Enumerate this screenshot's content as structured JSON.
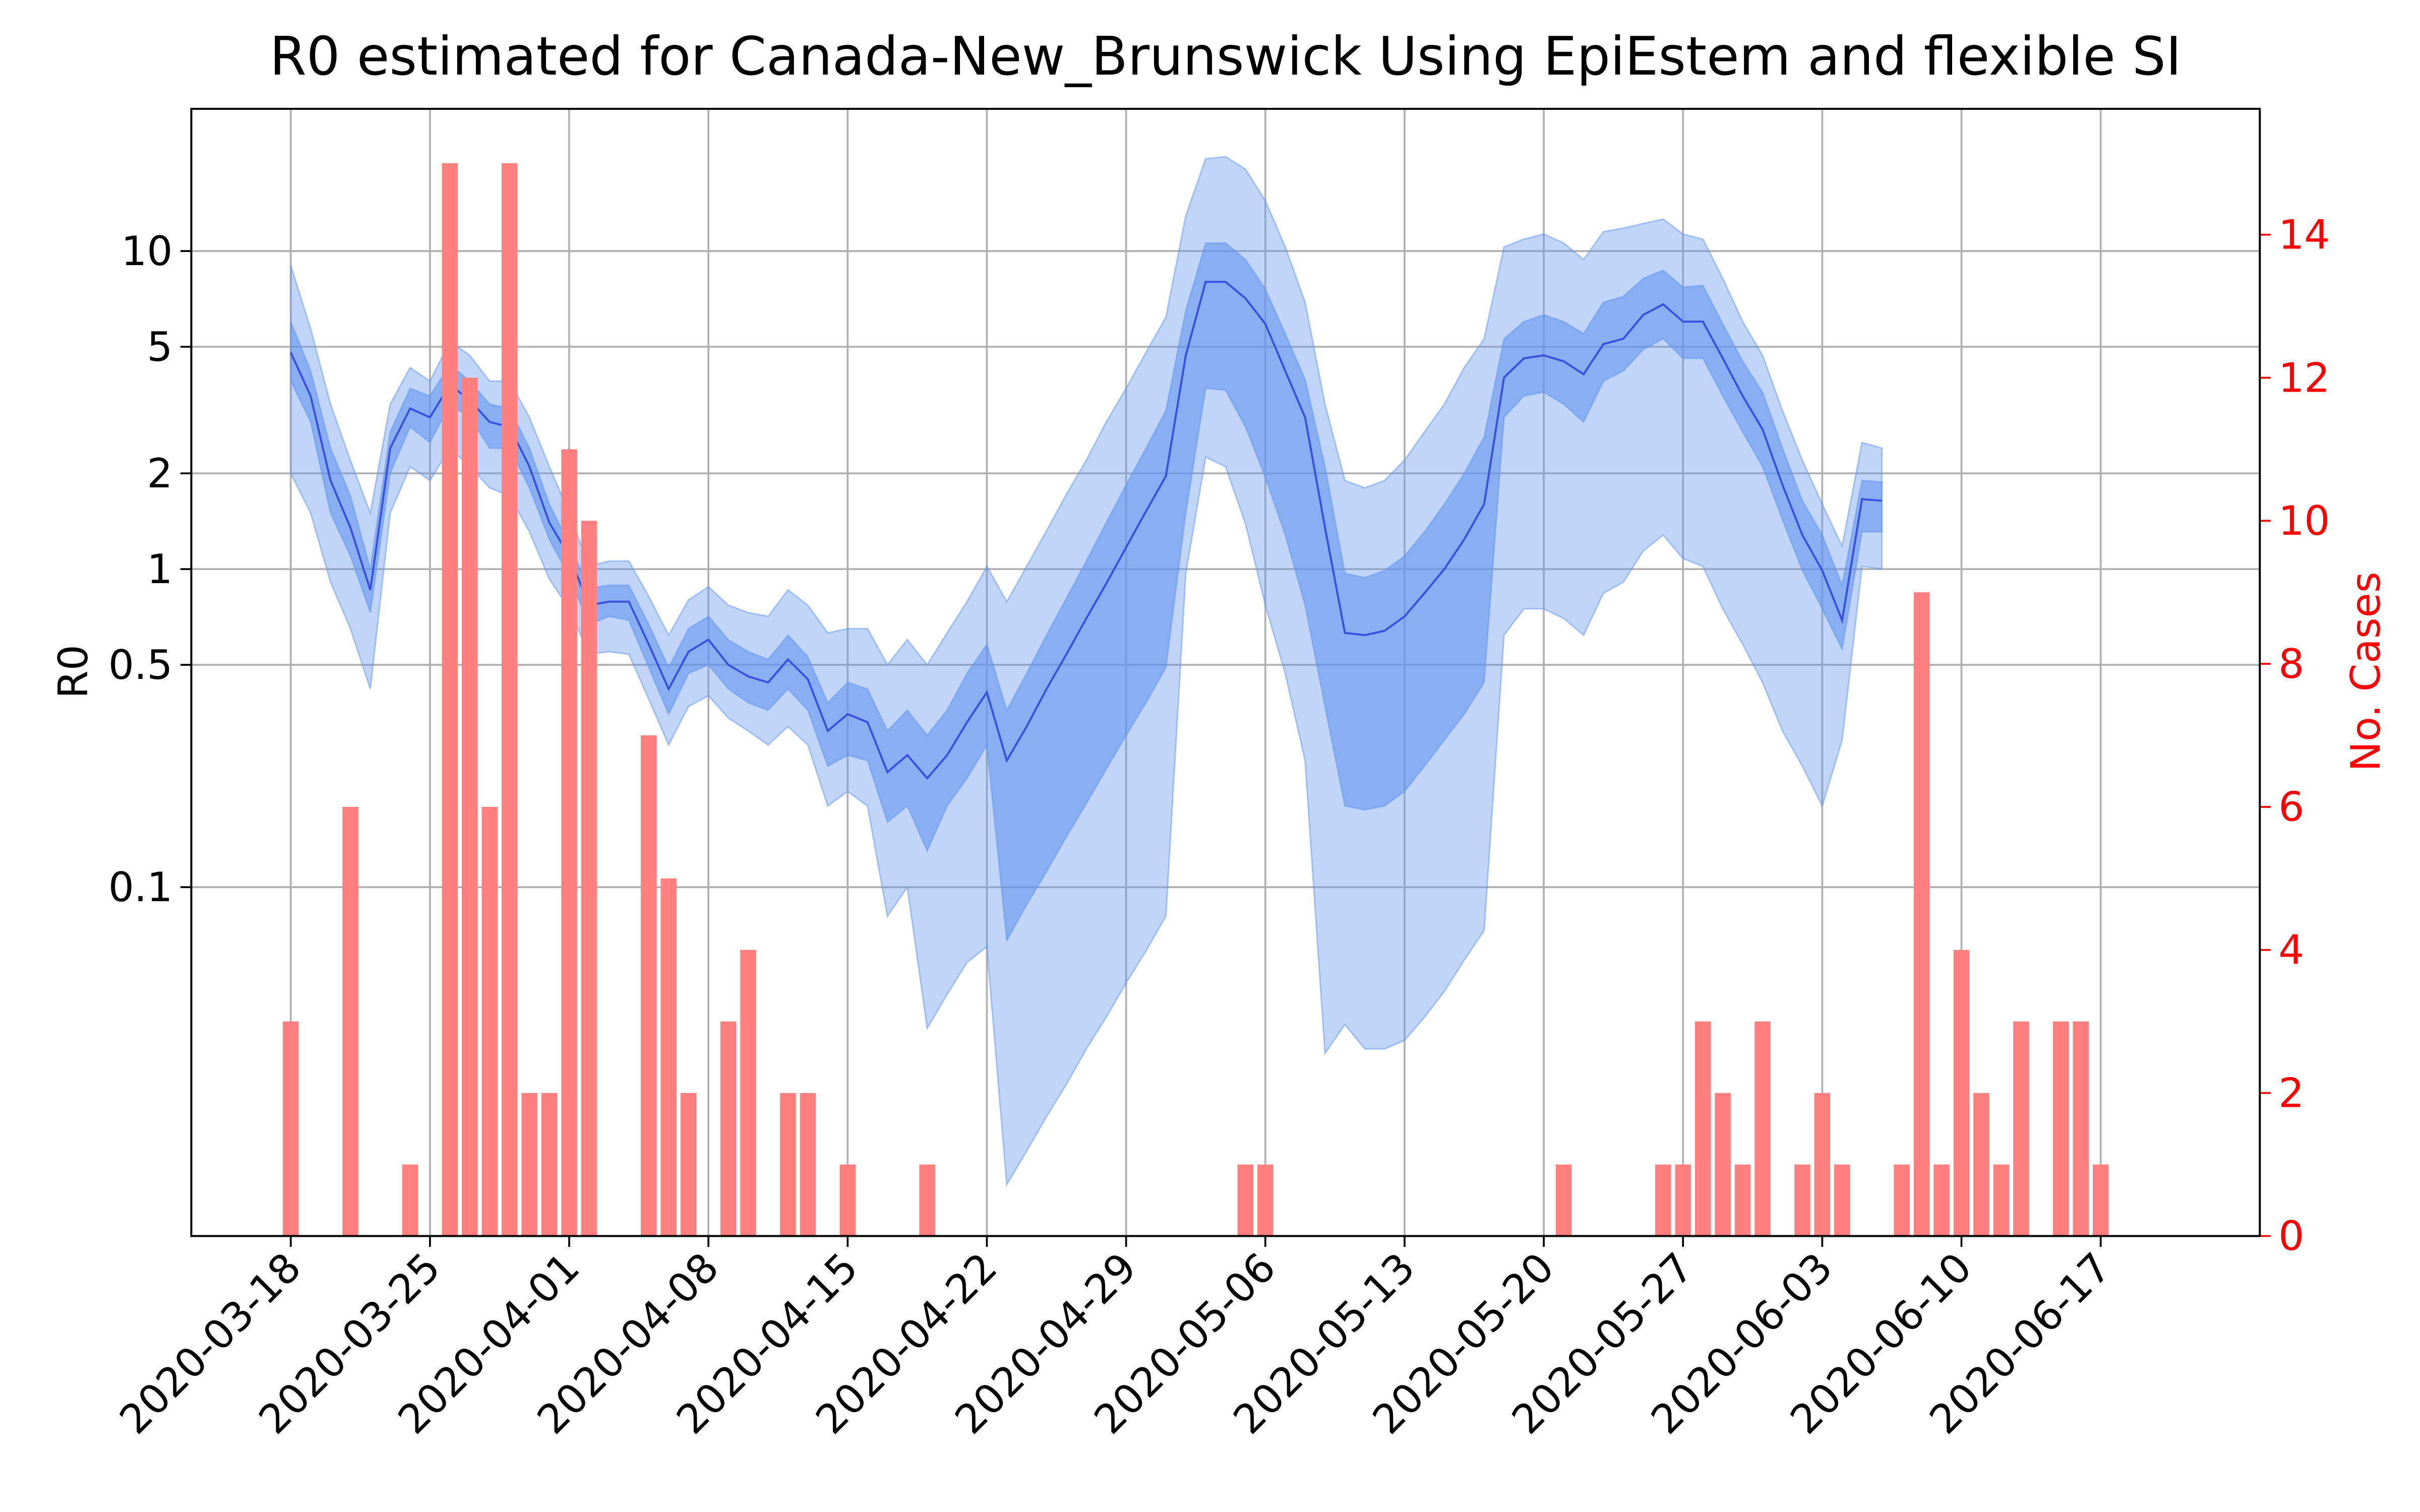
{
  "chart_data": {
    "type": "combo",
    "title": "R0 estimated for Canada-New_Brunswick Using EpiEstem and flexible SI",
    "ylabel": "R0",
    "y2label": "No. Cases",
    "log_y": true,
    "grid": true,
    "xlim": [
      "2020-03-13",
      "2020-06-25"
    ],
    "xticks": [
      "2020-03-18",
      "2020-03-25",
      "2020-04-01",
      "2020-04-08",
      "2020-04-15",
      "2020-04-22",
      "2020-04-29",
      "2020-05-06",
      "2020-05-13",
      "2020-05-20",
      "2020-05-27",
      "2020-06-03",
      "2020-06-10",
      "2020-06-17"
    ],
    "ylim": [
      0.008,
      28
    ],
    "yticks": [
      0.1,
      0.5,
      1,
      2,
      5,
      10
    ],
    "y2lim": [
      0,
      15.76
    ],
    "y2ticks": [
      0,
      2,
      4,
      6,
      8,
      10,
      12,
      14
    ],
    "y2color": "#ff0000",
    "x": [
      "2020-03-18",
      "2020-03-19",
      "2020-03-20",
      "2020-03-21",
      "2020-03-22",
      "2020-03-23",
      "2020-03-24",
      "2020-03-25",
      "2020-03-26",
      "2020-03-27",
      "2020-03-28",
      "2020-03-29",
      "2020-03-30",
      "2020-03-31",
      "2020-04-01",
      "2020-04-02",
      "2020-04-03",
      "2020-04-04",
      "2020-04-05",
      "2020-04-06",
      "2020-04-07",
      "2020-04-08",
      "2020-04-09",
      "2020-04-10",
      "2020-04-11",
      "2020-04-12",
      "2020-04-13",
      "2020-04-14",
      "2020-04-15",
      "2020-04-16",
      "2020-04-17",
      "2020-04-18",
      "2020-04-19",
      "2020-04-20",
      "2020-04-21",
      "2020-04-22",
      "2020-04-23",
      "2020-04-24",
      "2020-04-25",
      "2020-04-26",
      "2020-04-27",
      "2020-04-28",
      "2020-04-29",
      "2020-04-30",
      "2020-05-01",
      "2020-05-02",
      "2020-05-03",
      "2020-05-04",
      "2020-05-05",
      "2020-05-06",
      "2020-05-07",
      "2020-05-08",
      "2020-05-09",
      "2020-05-10",
      "2020-05-11",
      "2020-05-12",
      "2020-05-13",
      "2020-05-14",
      "2020-05-15",
      "2020-05-16",
      "2020-05-17",
      "2020-05-18",
      "2020-05-19",
      "2020-05-20",
      "2020-05-21",
      "2020-05-22",
      "2020-05-23",
      "2020-05-24",
      "2020-05-25",
      "2020-05-26",
      "2020-05-27",
      "2020-05-28",
      "2020-05-29",
      "2020-05-30",
      "2020-05-31",
      "2020-06-01",
      "2020-06-02",
      "2020-06-03",
      "2020-06-04",
      "2020-06-05",
      "2020-06-06"
    ],
    "series": [
      {
        "type": "band",
        "color": "#6495ed",
        "opacity": 0.4,
        "upper": [
          9.0,
          5.7,
          3.3,
          2.2,
          1.5,
          3.3,
          4.3,
          3.9,
          5.2,
          4.7,
          3.9,
          3.9,
          3.0,
          2.1,
          1.5,
          1.02,
          1.06,
          1.06,
          0.82,
          0.62,
          0.8,
          0.88,
          0.77,
          0.73,
          0.71,
          0.86,
          0.77,
          0.63,
          0.65,
          0.65,
          0.5,
          0.6,
          0.5,
          0.63,
          0.79,
          1.02,
          0.79,
          1.02,
          1.32,
          1.72,
          2.2,
          2.9,
          3.7,
          4.8,
          6.2,
          12.9,
          19.5,
          19.8,
          18.1,
          14.4,
          10.3,
          6.9,
          3.3,
          1.9,
          1.8,
          1.9,
          2.2,
          2.7,
          3.3,
          4.3,
          5.3,
          10.3,
          10.9,
          11.3,
          10.6,
          9.4,
          11.5,
          11.8,
          12.2,
          12.6,
          11.3,
          10.9,
          8.2,
          6.0,
          4.7,
          3.15,
          2.2,
          1.6,
          1.18,
          2.5,
          2.4
        ],
        "lower": [
          2.0,
          1.5,
          0.91,
          0.65,
          0.42,
          1.5,
          2.1,
          1.9,
          2.4,
          2.1,
          1.8,
          1.7,
          1.31,
          0.93,
          0.75,
          0.54,
          0.55,
          0.54,
          0.39,
          0.28,
          0.37,
          0.4,
          0.34,
          0.31,
          0.28,
          0.32,
          0.28,
          0.18,
          0.2,
          0.18,
          0.081,
          0.1,
          0.036,
          0.046,
          0.058,
          0.065,
          0.0116,
          0.0148,
          0.019,
          0.024,
          0.031,
          0.039,
          0.05,
          0.063,
          0.081,
          0.97,
          2.25,
          2.1,
          1.39,
          0.77,
          0.47,
          0.25,
          0.03,
          0.037,
          0.031,
          0.031,
          0.033,
          0.039,
          0.047,
          0.059,
          0.073,
          0.62,
          0.75,
          0.75,
          0.7,
          0.62,
          0.84,
          0.91,
          1.14,
          1.28,
          1.08,
          1.02,
          0.75,
          0.58,
          0.44,
          0.31,
          0.24,
          0.18,
          0.29,
          1.02,
          1.0
        ]
      },
      {
        "type": "band",
        "color": "#6495ed",
        "opacity": 0.6,
        "upper": [
          6.0,
          4.2,
          2.4,
          1.7,
          1.0,
          2.7,
          3.7,
          3.5,
          4.4,
          3.9,
          3.3,
          3.2,
          2.4,
          1.6,
          1.2,
          0.87,
          0.89,
          0.89,
          0.67,
          0.49,
          0.65,
          0.71,
          0.6,
          0.55,
          0.52,
          0.62,
          0.53,
          0.38,
          0.44,
          0.42,
          0.31,
          0.36,
          0.3,
          0.36,
          0.47,
          0.58,
          0.36,
          0.47,
          0.62,
          0.81,
          1.06,
          1.4,
          1.84,
          2.4,
          3.15,
          6.5,
          10.6,
          10.6,
          9.4,
          7.6,
          5.5,
          3.95,
          2.1,
          0.97,
          0.94,
          0.99,
          1.1,
          1.31,
          1.6,
          2.0,
          2.6,
          5.3,
          6.0,
          6.3,
          6.0,
          5.5,
          6.9,
          7.2,
          8.2,
          8.7,
          7.7,
          7.8,
          5.9,
          4.5,
          3.6,
          2.4,
          1.64,
          1.28,
          0.89,
          1.9,
          1.88
        ],
        "lower": [
          3.9,
          2.9,
          1.5,
          1.1,
          0.73,
          2.0,
          2.8,
          2.5,
          3.3,
          3.0,
          2.4,
          2.4,
          1.8,
          1.24,
          0.95,
          0.67,
          0.71,
          0.69,
          0.49,
          0.35,
          0.47,
          0.5,
          0.42,
          0.38,
          0.36,
          0.42,
          0.36,
          0.24,
          0.26,
          0.25,
          0.16,
          0.18,
          0.13,
          0.18,
          0.22,
          0.28,
          0.068,
          0.088,
          0.112,
          0.144,
          0.183,
          0.235,
          0.3,
          0.38,
          0.49,
          1.5,
          3.7,
          3.65,
          2.8,
          1.94,
          1.28,
          0.77,
          0.37,
          0.18,
          0.175,
          0.18,
          0.2,
          0.24,
          0.29,
          0.35,
          0.44,
          3.0,
          3.5,
          3.6,
          3.3,
          2.9,
          3.9,
          4.2,
          4.9,
          5.3,
          4.6,
          4.6,
          3.5,
          2.7,
          2.1,
          1.43,
          0.99,
          0.75,
          0.56,
          1.31,
          1.31
        ]
      },
      {
        "type": "line",
        "color": "#3a50e0",
        "values": [
          4.8,
          3.5,
          1.9,
          1.35,
          0.86,
          2.4,
          3.2,
          3.0,
          3.8,
          3.4,
          2.9,
          2.8,
          2.1,
          1.4,
          1.1,
          0.77,
          0.79,
          0.79,
          0.58,
          0.42,
          0.55,
          0.6,
          0.5,
          0.46,
          0.44,
          0.52,
          0.45,
          0.31,
          0.35,
          0.33,
          0.23,
          0.26,
          0.22,
          0.26,
          0.33,
          0.41,
          0.25,
          0.32,
          0.42,
          0.54,
          0.7,
          0.9,
          1.17,
          1.52,
          1.96,
          4.7,
          8.0,
          8.0,
          7.1,
          5.9,
          4.2,
          3.0,
          1.35,
          0.63,
          0.62,
          0.64,
          0.71,
          0.84,
          1.0,
          1.24,
          1.6,
          4.0,
          4.6,
          4.7,
          4.5,
          4.1,
          5.1,
          5.3,
          6.3,
          6.8,
          6.0,
          6.0,
          4.6,
          3.5,
          2.75,
          1.84,
          1.28,
          0.99,
          0.69,
          1.66,
          1.64
        ]
      },
      {
        "type": "bar",
        "axis": "y2",
        "color": "#ff7f7f",
        "x": [
          "2020-03-18",
          "2020-03-21",
          "2020-03-24",
          "2020-03-26",
          "2020-03-27",
          "2020-03-28",
          "2020-03-29",
          "2020-03-30",
          "2020-03-31",
          "2020-04-01",
          "2020-04-02",
          "2020-04-05",
          "2020-04-06",
          "2020-04-07",
          "2020-04-09",
          "2020-04-10",
          "2020-04-12",
          "2020-04-13",
          "2020-04-15",
          "2020-04-19",
          "2020-05-05",
          "2020-05-06",
          "2020-05-21",
          "2020-05-26",
          "2020-05-27",
          "2020-05-28",
          "2020-05-29",
          "2020-05-30",
          "2020-05-31",
          "2020-06-02",
          "2020-06-03",
          "2020-06-04",
          "2020-06-07",
          "2020-06-08",
          "2020-06-09",
          "2020-06-10",
          "2020-06-11",
          "2020-06-12",
          "2020-06-13",
          "2020-06-15",
          "2020-06-16",
          "2020-06-17"
        ],
        "values": [
          3,
          6,
          1,
          15,
          12,
          6,
          15,
          2,
          2,
          11,
          10,
          7,
          5,
          2,
          3,
          4,
          2,
          2,
          1,
          1,
          1,
          1,
          1,
          1,
          1,
          3,
          2,
          1,
          3,
          1,
          2,
          1,
          1,
          9,
          1,
          4,
          2,
          1,
          3,
          3,
          3,
          1
        ]
      }
    ]
  }
}
